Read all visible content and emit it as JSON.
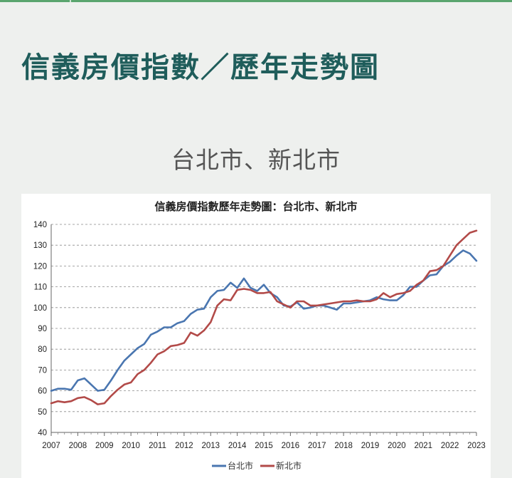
{
  "header": {
    "title": "信義房價指數／歷年走勢圖",
    "subtitle": "台北市、新北市"
  },
  "colors": {
    "title": "#1f5d5b",
    "accent_rule": "#5aa56e",
    "taipei": "#4a76b0",
    "new_taipei": "#b24a48"
  },
  "chart_data": {
    "type": "line",
    "title": "信義房價指數歷年走勢圖：台北市、新北市",
    "xlabel": "",
    "ylabel": "",
    "x_ticks": [
      "2007",
      "2008",
      "2009",
      "2010",
      "2011",
      "2012",
      "2013",
      "2014",
      "2015",
      "2016",
      "2017",
      "2018",
      "2019",
      "2020",
      "2021",
      "2022",
      "2023"
    ],
    "xlim": [
      2007,
      2023
    ],
    "ylim": [
      40,
      140
    ],
    "y_ticks": [
      40,
      50,
      60,
      70,
      80,
      90,
      100,
      110,
      120,
      130,
      140
    ],
    "grid": "horizontal dashed",
    "legend_position": "bottom",
    "series": [
      {
        "name": "台北市",
        "color": "#4a76b0",
        "points": [
          [
            2007,
            60
          ],
          [
            2007.25,
            61
          ],
          [
            2007.5,
            61
          ],
          [
            2007.75,
            60.5
          ],
          [
            2008,
            65
          ],
          [
            2008.25,
            66
          ],
          [
            2008.5,
            63
          ],
          [
            2008.75,
            60
          ],
          [
            2009,
            60.5
          ],
          [
            2009.25,
            65
          ],
          [
            2009.5,
            70
          ],
          [
            2009.75,
            74.5
          ],
          [
            2010,
            77.5
          ],
          [
            2010.25,
            80.5
          ],
          [
            2010.5,
            82.5
          ],
          [
            2010.75,
            87
          ],
          [
            2011,
            88.5
          ],
          [
            2011.25,
            90.5
          ],
          [
            2011.5,
            90.5
          ],
          [
            2011.75,
            92.5
          ],
          [
            2012,
            93.5
          ],
          [
            2012.25,
            97
          ],
          [
            2012.5,
            99
          ],
          [
            2012.75,
            99.5
          ],
          [
            2013,
            105
          ],
          [
            2013.25,
            108
          ],
          [
            2013.5,
            108.5
          ],
          [
            2013.75,
            112
          ],
          [
            2014,
            109.5
          ],
          [
            2014.25,
            114
          ],
          [
            2014.5,
            109.5
          ],
          [
            2014.75,
            108
          ],
          [
            2015,
            111
          ],
          [
            2015.25,
            107
          ],
          [
            2015.5,
            105
          ],
          [
            2015.75,
            101
          ],
          [
            2016,
            100.5
          ],
          [
            2016.25,
            102.5
          ],
          [
            2016.5,
            99.5
          ],
          [
            2016.75,
            100
          ],
          [
            2017,
            101
          ],
          [
            2017.25,
            101
          ],
          [
            2017.5,
            100
          ],
          [
            2017.75,
            99
          ],
          [
            2018,
            102
          ],
          [
            2018.25,
            102
          ],
          [
            2018.5,
            102.5
          ],
          [
            2018.75,
            103
          ],
          [
            2019,
            103.5
          ],
          [
            2019.25,
            105
          ],
          [
            2019.5,
            104
          ],
          [
            2019.75,
            103.5
          ],
          [
            2020,
            103.5
          ],
          [
            2020.25,
            106
          ],
          [
            2020.5,
            110
          ],
          [
            2020.75,
            110
          ],
          [
            2021,
            113
          ],
          [
            2021.25,
            115.5
          ],
          [
            2021.5,
            116
          ],
          [
            2021.75,
            120
          ],
          [
            2022,
            122
          ],
          [
            2022.25,
            125
          ],
          [
            2022.5,
            127.5
          ],
          [
            2022.75,
            126
          ],
          [
            2023,
            122.5
          ]
        ]
      },
      {
        "name": "新北市",
        "color": "#b24a48",
        "points": [
          [
            2007,
            54
          ],
          [
            2007.25,
            55
          ],
          [
            2007.5,
            54.5
          ],
          [
            2007.75,
            55
          ],
          [
            2008,
            56.5
          ],
          [
            2008.25,
            57
          ],
          [
            2008.5,
            55.5
          ],
          [
            2008.75,
            53.5
          ],
          [
            2009,
            54
          ],
          [
            2009.25,
            57.5
          ],
          [
            2009.5,
            60.5
          ],
          [
            2009.75,
            63
          ],
          [
            2010,
            64
          ],
          [
            2010.25,
            68
          ],
          [
            2010.5,
            70
          ],
          [
            2010.75,
            73.5
          ],
          [
            2011,
            77.5
          ],
          [
            2011.25,
            79
          ],
          [
            2011.5,
            81.5
          ],
          [
            2011.75,
            82
          ],
          [
            2012,
            83
          ],
          [
            2012.25,
            88
          ],
          [
            2012.5,
            86.5
          ],
          [
            2012.75,
            89
          ],
          [
            2013,
            93
          ],
          [
            2013.25,
            101
          ],
          [
            2013.5,
            104
          ],
          [
            2013.75,
            103.5
          ],
          [
            2014,
            108.5
          ],
          [
            2014.25,
            109
          ],
          [
            2014.5,
            108.5
          ],
          [
            2014.75,
            107
          ],
          [
            2015,
            107
          ],
          [
            2015.25,
            107.5
          ],
          [
            2015.5,
            103
          ],
          [
            2015.75,
            101.5
          ],
          [
            2016,
            100
          ],
          [
            2016.25,
            103
          ],
          [
            2016.5,
            103
          ],
          [
            2016.75,
            101
          ],
          [
            2017,
            101
          ],
          [
            2017.25,
            101.5
          ],
          [
            2017.5,
            102
          ],
          [
            2017.75,
            102.5
          ],
          [
            2018,
            103
          ],
          [
            2018.25,
            103
          ],
          [
            2018.5,
            103.5
          ],
          [
            2018.75,
            103
          ],
          [
            2019,
            103
          ],
          [
            2019.25,
            104
          ],
          [
            2019.5,
            107
          ],
          [
            2019.75,
            105
          ],
          [
            2020,
            106.5
          ],
          [
            2020.25,
            107
          ],
          [
            2020.5,
            108
          ],
          [
            2020.75,
            111
          ],
          [
            2021,
            113
          ],
          [
            2021.25,
            117.5
          ],
          [
            2021.5,
            118
          ],
          [
            2021.75,
            120
          ],
          [
            2022,
            125
          ],
          [
            2022.25,
            130
          ],
          [
            2022.5,
            133
          ],
          [
            2022.75,
            136
          ],
          [
            2023,
            137
          ]
        ]
      }
    ]
  }
}
